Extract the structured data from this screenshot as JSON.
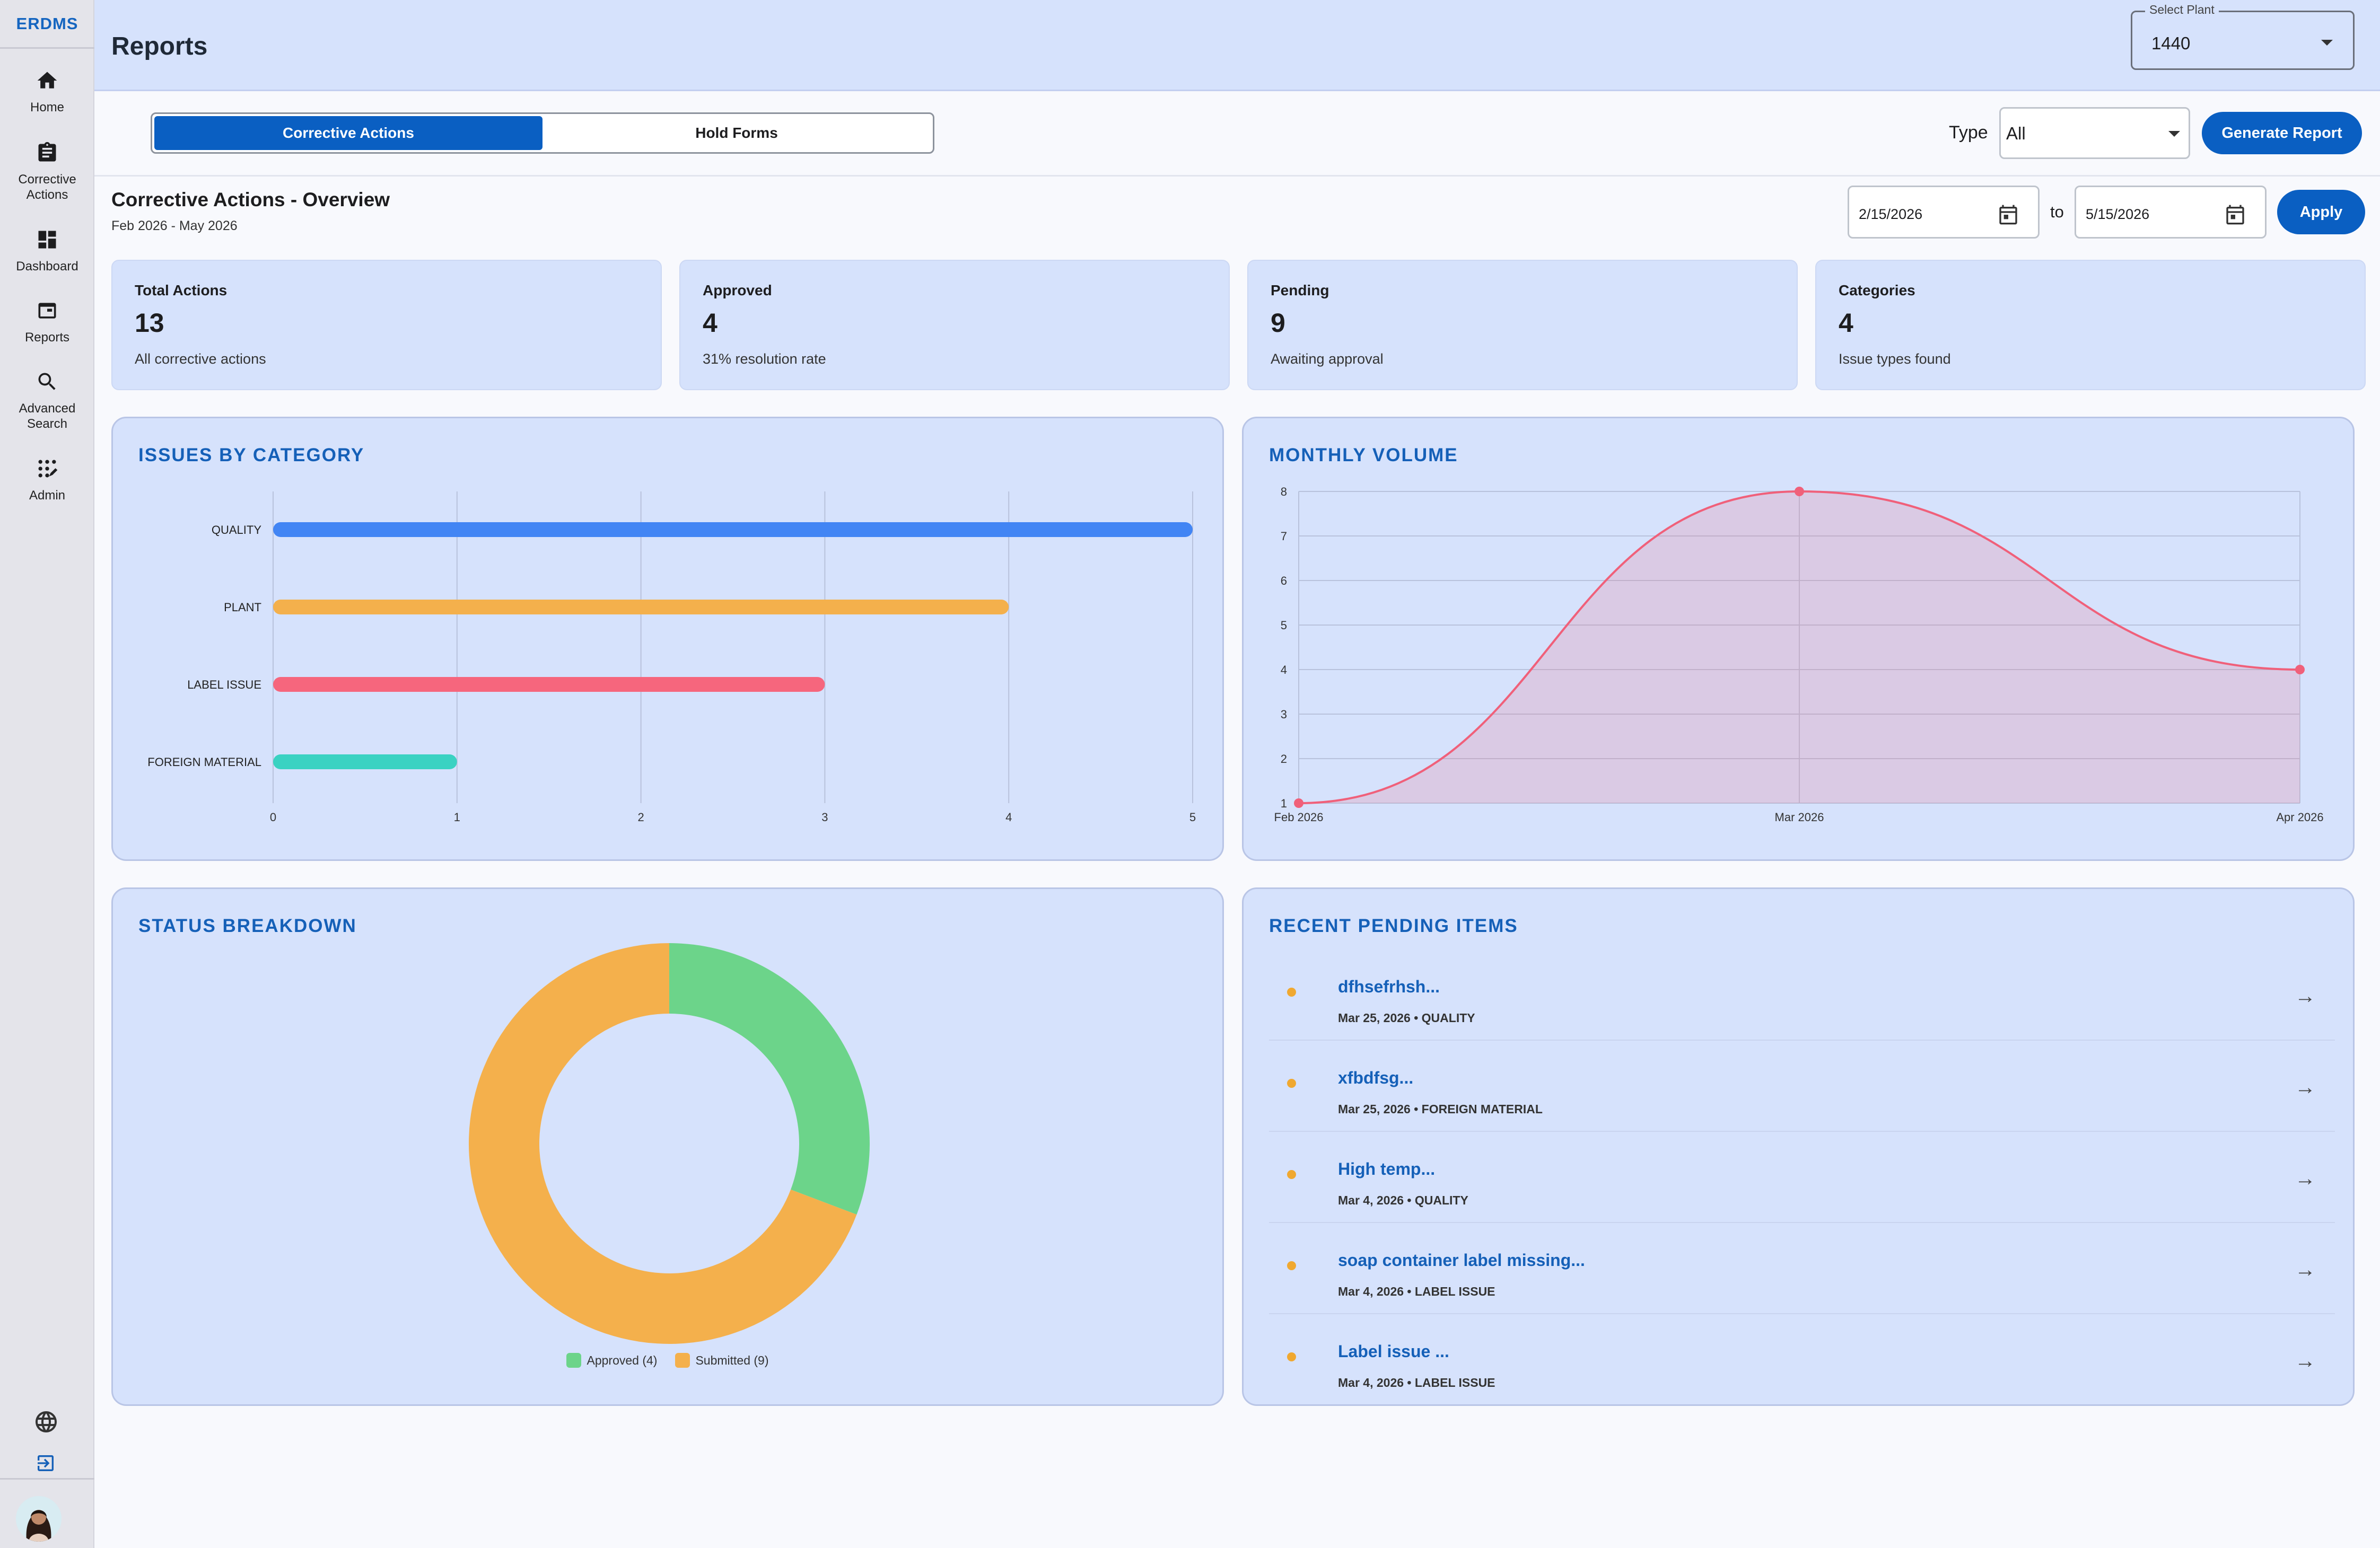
{
  "sidebar": {
    "brand": "ERDMS",
    "items": [
      {
        "label": "Home",
        "icon": "home-icon"
      },
      {
        "label": "Corrective Actions",
        "icon": "clipboard-icon"
      },
      {
        "label": "Dashboard",
        "icon": "dashboard-icon"
      },
      {
        "label": "Reports",
        "icon": "reports-icon"
      },
      {
        "label": "Advanced Search",
        "icon": "search-icon"
      },
      {
        "label": "Admin",
        "icon": "admin-icon"
      }
    ],
    "bottom_icons": [
      "globe-icon",
      "logout-icon"
    ]
  },
  "header": {
    "title": "Reports",
    "plant_select": {
      "label": "Select Plant",
      "value": "1440"
    }
  },
  "toolbar": {
    "tabs": [
      {
        "label": "Corrective Actions",
        "active": true
      },
      {
        "label": "Hold Forms",
        "active": false
      }
    ],
    "type_label": "Type",
    "type_value": "All",
    "generate_label": "Generate Report"
  },
  "overview": {
    "title": "Corrective Actions - Overview",
    "subtitle": "Feb 2026 - May 2026",
    "date_from": "2/15/2026",
    "to_label": "to",
    "date_to": "5/15/2026",
    "apply_label": "Apply"
  },
  "stats": [
    {
      "label": "Total Actions",
      "value": "13",
      "desc": "All corrective actions"
    },
    {
      "label": "Approved",
      "value": "4",
      "desc": "31% resolution rate"
    },
    {
      "label": "Pending",
      "value": "9",
      "desc": "Awaiting approval"
    },
    {
      "label": "Categories",
      "value": "4",
      "desc": "Issue types found"
    }
  ],
  "panels": {
    "issues_title": "ISSUES BY CATEGORY",
    "monthly_title": "MONTHLY VOLUME",
    "status_title": "STATUS BREAKDOWN",
    "pending_title": "RECENT PENDING ITEMS"
  },
  "colors": {
    "primary": "#0a5fc2",
    "card_bg": "#d6e2fc",
    "quality": "#4285f4",
    "plant": "#f4b04c",
    "label_issue": "#f6667d",
    "foreign_material": "#3ad2c2",
    "approved": "#6cd48a",
    "submitted": "#f4b04c",
    "line": "#f0607a"
  },
  "chart_data": [
    {
      "type": "bar",
      "orientation": "horizontal",
      "title": "ISSUES BY CATEGORY",
      "categories": [
        "QUALITY",
        "PLANT",
        "LABEL ISSUE",
        "FOREIGN MATERIAL"
      ],
      "values": [
        5,
        4,
        3,
        1
      ],
      "xlim": [
        0,
        5
      ],
      "xticks": [
        "0",
        "1",
        "2",
        "3",
        "4",
        "5"
      ],
      "grid": true
    },
    {
      "type": "area",
      "title": "MONTHLY VOLUME",
      "x": [
        "Feb 2026",
        "Mar 2026",
        "Apr 2026"
      ],
      "values": [
        1,
        8,
        4
      ],
      "ylim": [
        1,
        8
      ],
      "yticks": [
        "1",
        "2",
        "3",
        "4",
        "5",
        "6",
        "7",
        "8"
      ],
      "grid": true
    },
    {
      "type": "pie",
      "variant": "donut",
      "title": "STATUS BREAKDOWN",
      "categories": [
        "Approved",
        "Submitted"
      ],
      "values": [
        4,
        9
      ],
      "legend": [
        "Approved (4)",
        "Submitted (9)"
      ],
      "legend_position": "bottom"
    }
  ],
  "pending_items": [
    {
      "title": "dfhsefrhsh...",
      "meta": "Mar 25, 2026 • QUALITY"
    },
    {
      "title": "xfbdfsg...",
      "meta": "Mar 25, 2026 • FOREIGN MATERIAL"
    },
    {
      "title": "High temp...",
      "meta": "Mar 4, 2026 • QUALITY"
    },
    {
      "title": "soap container label missing...",
      "meta": "Mar 4, 2026 • LABEL ISSUE"
    },
    {
      "title": "Label issue ...",
      "meta": "Mar 4, 2026 • LABEL ISSUE"
    }
  ],
  "pending_arrow": "→"
}
